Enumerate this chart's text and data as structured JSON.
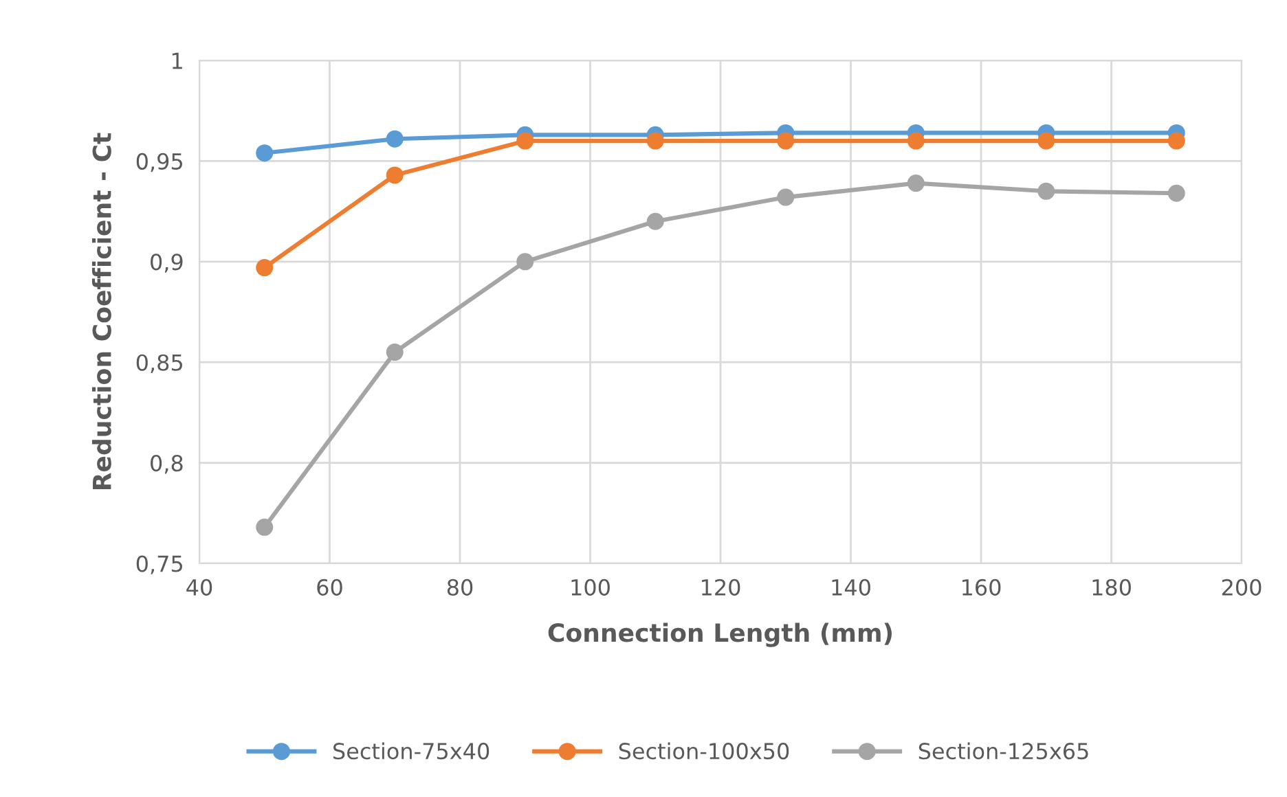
{
  "chart_data": {
    "type": "line",
    "xlabel": "Connection Length (mm)",
    "ylabel": "Reduction Coefficient - Ct",
    "x": [
      50,
      70,
      90,
      110,
      130,
      150,
      170,
      190
    ],
    "series": [
      {
        "name": "Section-75x40",
        "color": "#5b9bd5",
        "values": [
          0.954,
          0.961,
          0.963,
          0.963,
          0.964,
          0.964,
          0.964,
          0.964
        ]
      },
      {
        "name": "Section-100x50",
        "color": "#ed7d31",
        "values": [
          0.897,
          0.943,
          0.96,
          0.96,
          0.96,
          0.96,
          0.96,
          0.96
        ]
      },
      {
        "name": "Section-125x65",
        "color": "#a5a5a5",
        "values": [
          0.768,
          0.855,
          0.9,
          0.92,
          0.932,
          0.939,
          0.935,
          0.934
        ]
      }
    ],
    "xlim": [
      40,
      200
    ],
    "xticks": [
      40,
      60,
      80,
      100,
      120,
      140,
      160,
      180,
      200
    ],
    "ylim": [
      0.75,
      1
    ],
    "yticks": [
      {
        "value": 0.75,
        "label": "0,75"
      },
      {
        "value": 0.8,
        "label": "0,8"
      },
      {
        "value": 0.85,
        "label": "0,85"
      },
      {
        "value": 0.9,
        "label": "0,9"
      },
      {
        "value": 0.95,
        "label": "0,95"
      },
      {
        "value": 1,
        "label": "1"
      }
    ],
    "grid": true,
    "legend": "bottom",
    "marker": "circle",
    "line_style": "solid"
  }
}
